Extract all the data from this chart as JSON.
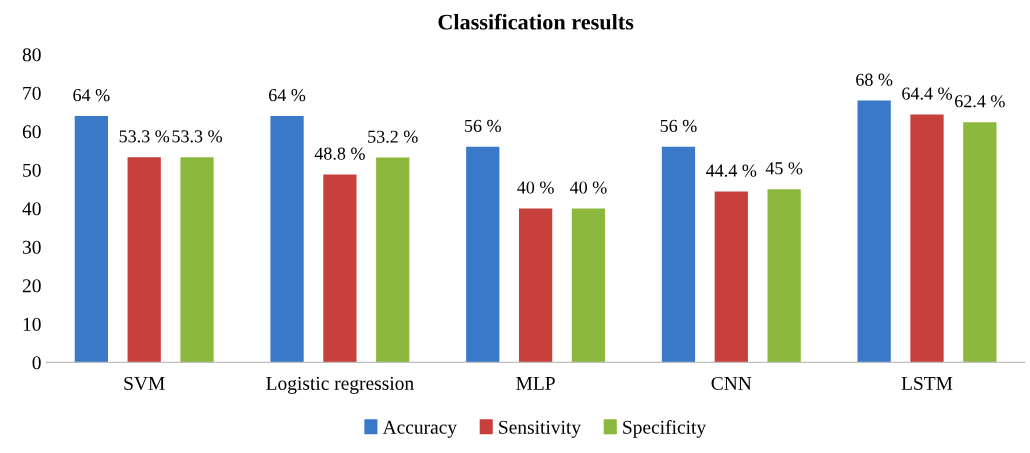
{
  "chart_data": {
    "type": "bar",
    "title": "Classification results",
    "categories": [
      "SVM",
      "Logistic regression",
      "MLP",
      "CNN",
      "LSTM"
    ],
    "series": [
      {
        "name": "Accuracy",
        "color": "#3a78c8",
        "values": [
          64,
          64,
          56,
          56,
          68
        ],
        "value_labels": [
          "64 %",
          "64 %",
          "56 %",
          "56 %",
          "68 %"
        ]
      },
      {
        "name": "Sensitivity",
        "color": "#c8403c",
        "values": [
          53.3,
          48.8,
          40,
          44.4,
          64.4
        ],
        "value_labels": [
          "53.3 %",
          "48.8 %",
          "40 %",
          "44.4 %",
          "64.4 %"
        ]
      },
      {
        "name": "Specificity",
        "color": "#8cb83e",
        "values": [
          53.3,
          53.2,
          40,
          45,
          62.4
        ],
        "value_labels": [
          "53.3 %",
          "53.2 %",
          "40 %",
          "45 %",
          "62.4 %"
        ]
      }
    ],
    "ylim": [
      0,
      80
    ],
    "yticks": [
      0,
      10,
      20,
      30,
      40,
      50,
      60,
      70,
      80
    ],
    "grid": false,
    "legend": "bottom"
  }
}
